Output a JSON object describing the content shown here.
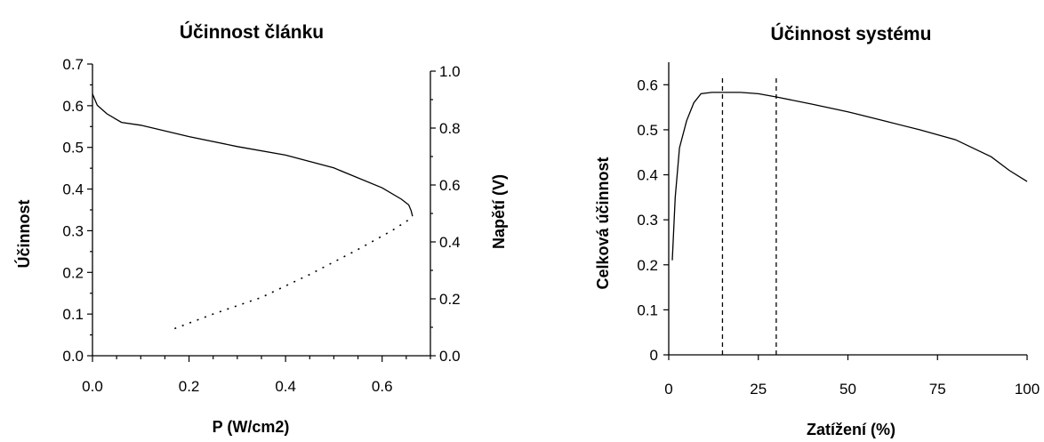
{
  "chart_data": [
    {
      "type": "line",
      "title": "Účinnost článku",
      "xlabel": "P (W/cm2)",
      "ylabel": "Účinnost",
      "y2label": "Napětí (V)",
      "xlim": [
        0,
        0.7
      ],
      "ylim": [
        0,
        0.7
      ],
      "y2lim": [
        0,
        1.0
      ],
      "x_ticks": [
        "0.0",
        "0.2",
        "0.4",
        "0.6"
      ],
      "x_tick_values": [
        0,
        0.2,
        0.4,
        0.6
      ],
      "y_ticks": [
        "0.0",
        "0.1",
        "0.2",
        "0.3",
        "0.4",
        "0.5",
        "0.6",
        "0.7"
      ],
      "y_tick_values": [
        0,
        0.1,
        0.2,
        0.3,
        0.4,
        0.5,
        0.6,
        0.7
      ],
      "y2_ticks": [
        "0.0",
        "0.2",
        "0.4",
        "0.6",
        "0.8",
        "1.0"
      ],
      "y2_tick_values": [
        0,
        0.2,
        0.4,
        0.6,
        0.8,
        1.0
      ],
      "grid": false,
      "series": [
        {
          "style": "solid",
          "axis": "right",
          "x": [
            0.0,
            0.01,
            0.03,
            0.06,
            0.1,
            0.2,
            0.3,
            0.4,
            0.5,
            0.6,
            0.64,
            0.655,
            0.66,
            0.663
          ],
          "y": [
            0.92,
            0.88,
            0.85,
            0.82,
            0.81,
            0.77,
            0.735,
            0.705,
            0.66,
            0.59,
            0.55,
            0.53,
            0.51,
            0.49
          ]
        },
        {
          "style": "dotted",
          "axis": "left",
          "x": [
            0.17,
            0.25,
            0.35,
            0.45,
            0.55,
            0.62,
            0.66
          ],
          "y": [
            0.065,
            0.1,
            0.14,
            0.195,
            0.255,
            0.3,
            0.33
          ]
        }
      ]
    },
    {
      "type": "line",
      "title": "Účinnost systému",
      "xlabel": "Zatížení (%)",
      "ylabel": "Celková účinnost",
      "xlim": [
        0,
        100
      ],
      "ylim": [
        0,
        0.65
      ],
      "x_ticks": [
        "0",
        "25",
        "50",
        "75",
        "100"
      ],
      "x_tick_values": [
        0,
        25,
        50,
        75,
        100
      ],
      "y_ticks": [
        "0",
        "0.1",
        "0.2",
        "0.3",
        "0.4",
        "0.5",
        "0.6"
      ],
      "y_tick_values": [
        0,
        0.1,
        0.2,
        0.3,
        0.4,
        0.5,
        0.6
      ],
      "grid": false,
      "vertical_lines": [
        15,
        30
      ],
      "series": [
        {
          "style": "solid",
          "x": [
            1,
            1.8,
            3,
            5,
            7,
            9,
            12,
            20,
            25,
            30,
            40,
            50,
            60,
            70,
            80,
            90,
            95,
            100
          ],
          "y": [
            0.21,
            0.35,
            0.46,
            0.52,
            0.56,
            0.58,
            0.583,
            0.583,
            0.58,
            0.573,
            0.557,
            0.54,
            0.52,
            0.5,
            0.478,
            0.44,
            0.41,
            0.385
          ]
        }
      ]
    }
  ]
}
